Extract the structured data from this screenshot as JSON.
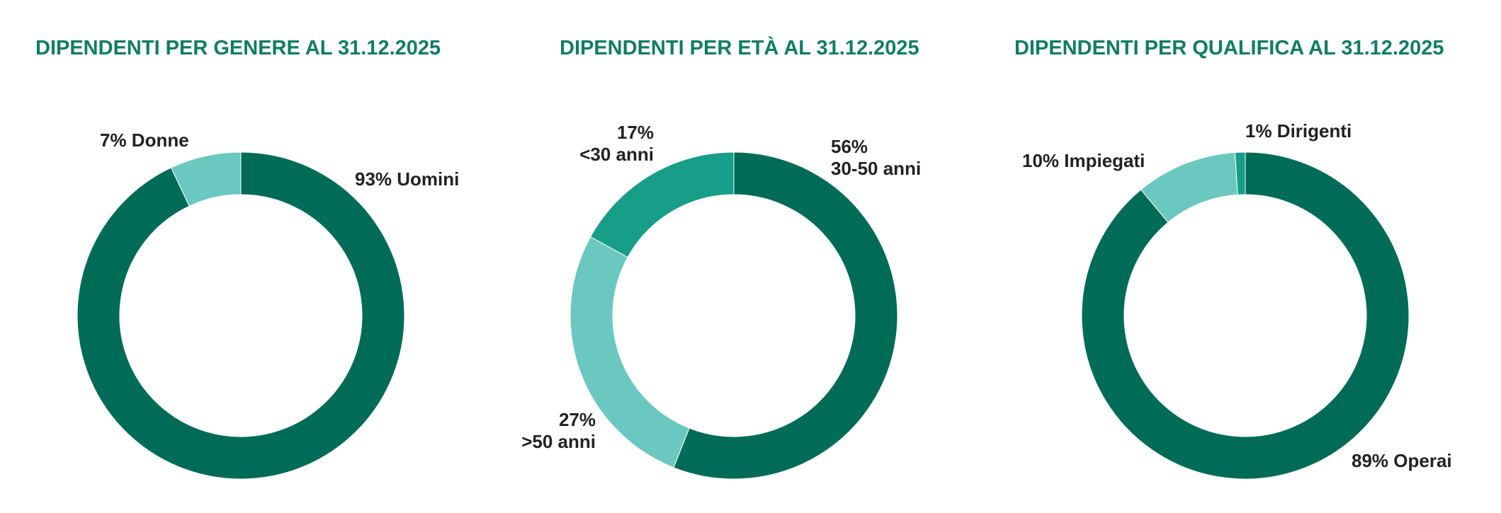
{
  "colors": {
    "title": "#0f7d63",
    "dark_green": "#006b57",
    "mid_teal": "#169e88",
    "light_teal": "#6bc8c0",
    "label_text": "#222222"
  },
  "chart_data": [
    {
      "type": "pie",
      "donut": true,
      "title": "DIPENDENTI PER GENERE AL 31.12.2025",
      "slices": [
        {
          "name": "Uomini",
          "value": 93,
          "value_label": "93%",
          "color": "#006b57"
        },
        {
          "name": "Donne",
          "value": 7,
          "value_label": "7%",
          "color": "#6bc8c0"
        }
      ]
    },
    {
      "type": "pie",
      "donut": true,
      "title": "DIPENDENTI PER ETÀ AL 31.12.2025",
      "slices": [
        {
          "name": "30-50 anni",
          "value": 56,
          "value_label": "56%",
          "color": "#006b57"
        },
        {
          "name": ">50 anni",
          "value": 27,
          "value_label": "27%",
          "color": "#6bc8c0"
        },
        {
          "name": "<30 anni",
          "value": 17,
          "value_label": "17%",
          "color": "#169e88"
        }
      ]
    },
    {
      "type": "pie",
      "donut": true,
      "title": "DIPENDENTI PER QUALIFICA AL 31.12.2025",
      "slices": [
        {
          "name": "Operai",
          "value": 89,
          "value_label": "89%",
          "color": "#006b57"
        },
        {
          "name": "Impiegati",
          "value": 10,
          "value_label": "10%",
          "color": "#6bc8c0"
        },
        {
          "name": "Dirigenti",
          "value": 1,
          "value_label": "1%",
          "color": "#169e88"
        }
      ]
    }
  ]
}
